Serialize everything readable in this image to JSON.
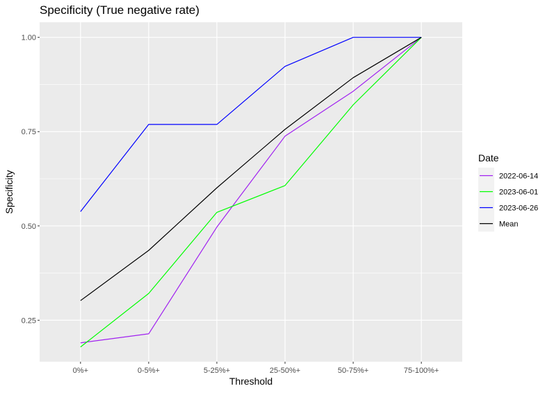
{
  "chart_data": {
    "type": "line",
    "title": "Specificity (True negative rate)",
    "xlabel": "Threshold",
    "ylabel": "Specificity",
    "categories": [
      "0%+",
      "0-5%+",
      "5-25%+",
      "25-50%+",
      "50-75%+",
      "75-100%+"
    ],
    "yticks": [
      0.25,
      0.5,
      0.75,
      1.0
    ],
    "ytick_labels": [
      "0.25",
      "0.50",
      "0.75",
      "1.00"
    ],
    "ylim": [
      0.14,
      1.04
    ],
    "grid": true,
    "legend_title": "Date",
    "legend_position": "right",
    "series": [
      {
        "name": "2022-06-14",
        "color": "#a020f0",
        "values": [
          0.19,
          0.214,
          0.497,
          0.738,
          0.857,
          1.0
        ]
      },
      {
        "name": "2023-06-01",
        "color": "#00ff00",
        "values": [
          0.179,
          0.321,
          0.536,
          0.607,
          0.821,
          1.0
        ]
      },
      {
        "name": "2023-06-26",
        "color": "#0000ff",
        "values": [
          0.538,
          0.769,
          0.769,
          0.923,
          1.0,
          1.0
        ]
      },
      {
        "name": "Mean",
        "color": "#000000",
        "values": [
          0.302,
          0.435,
          0.601,
          0.756,
          0.893,
          1.0
        ]
      }
    ]
  }
}
